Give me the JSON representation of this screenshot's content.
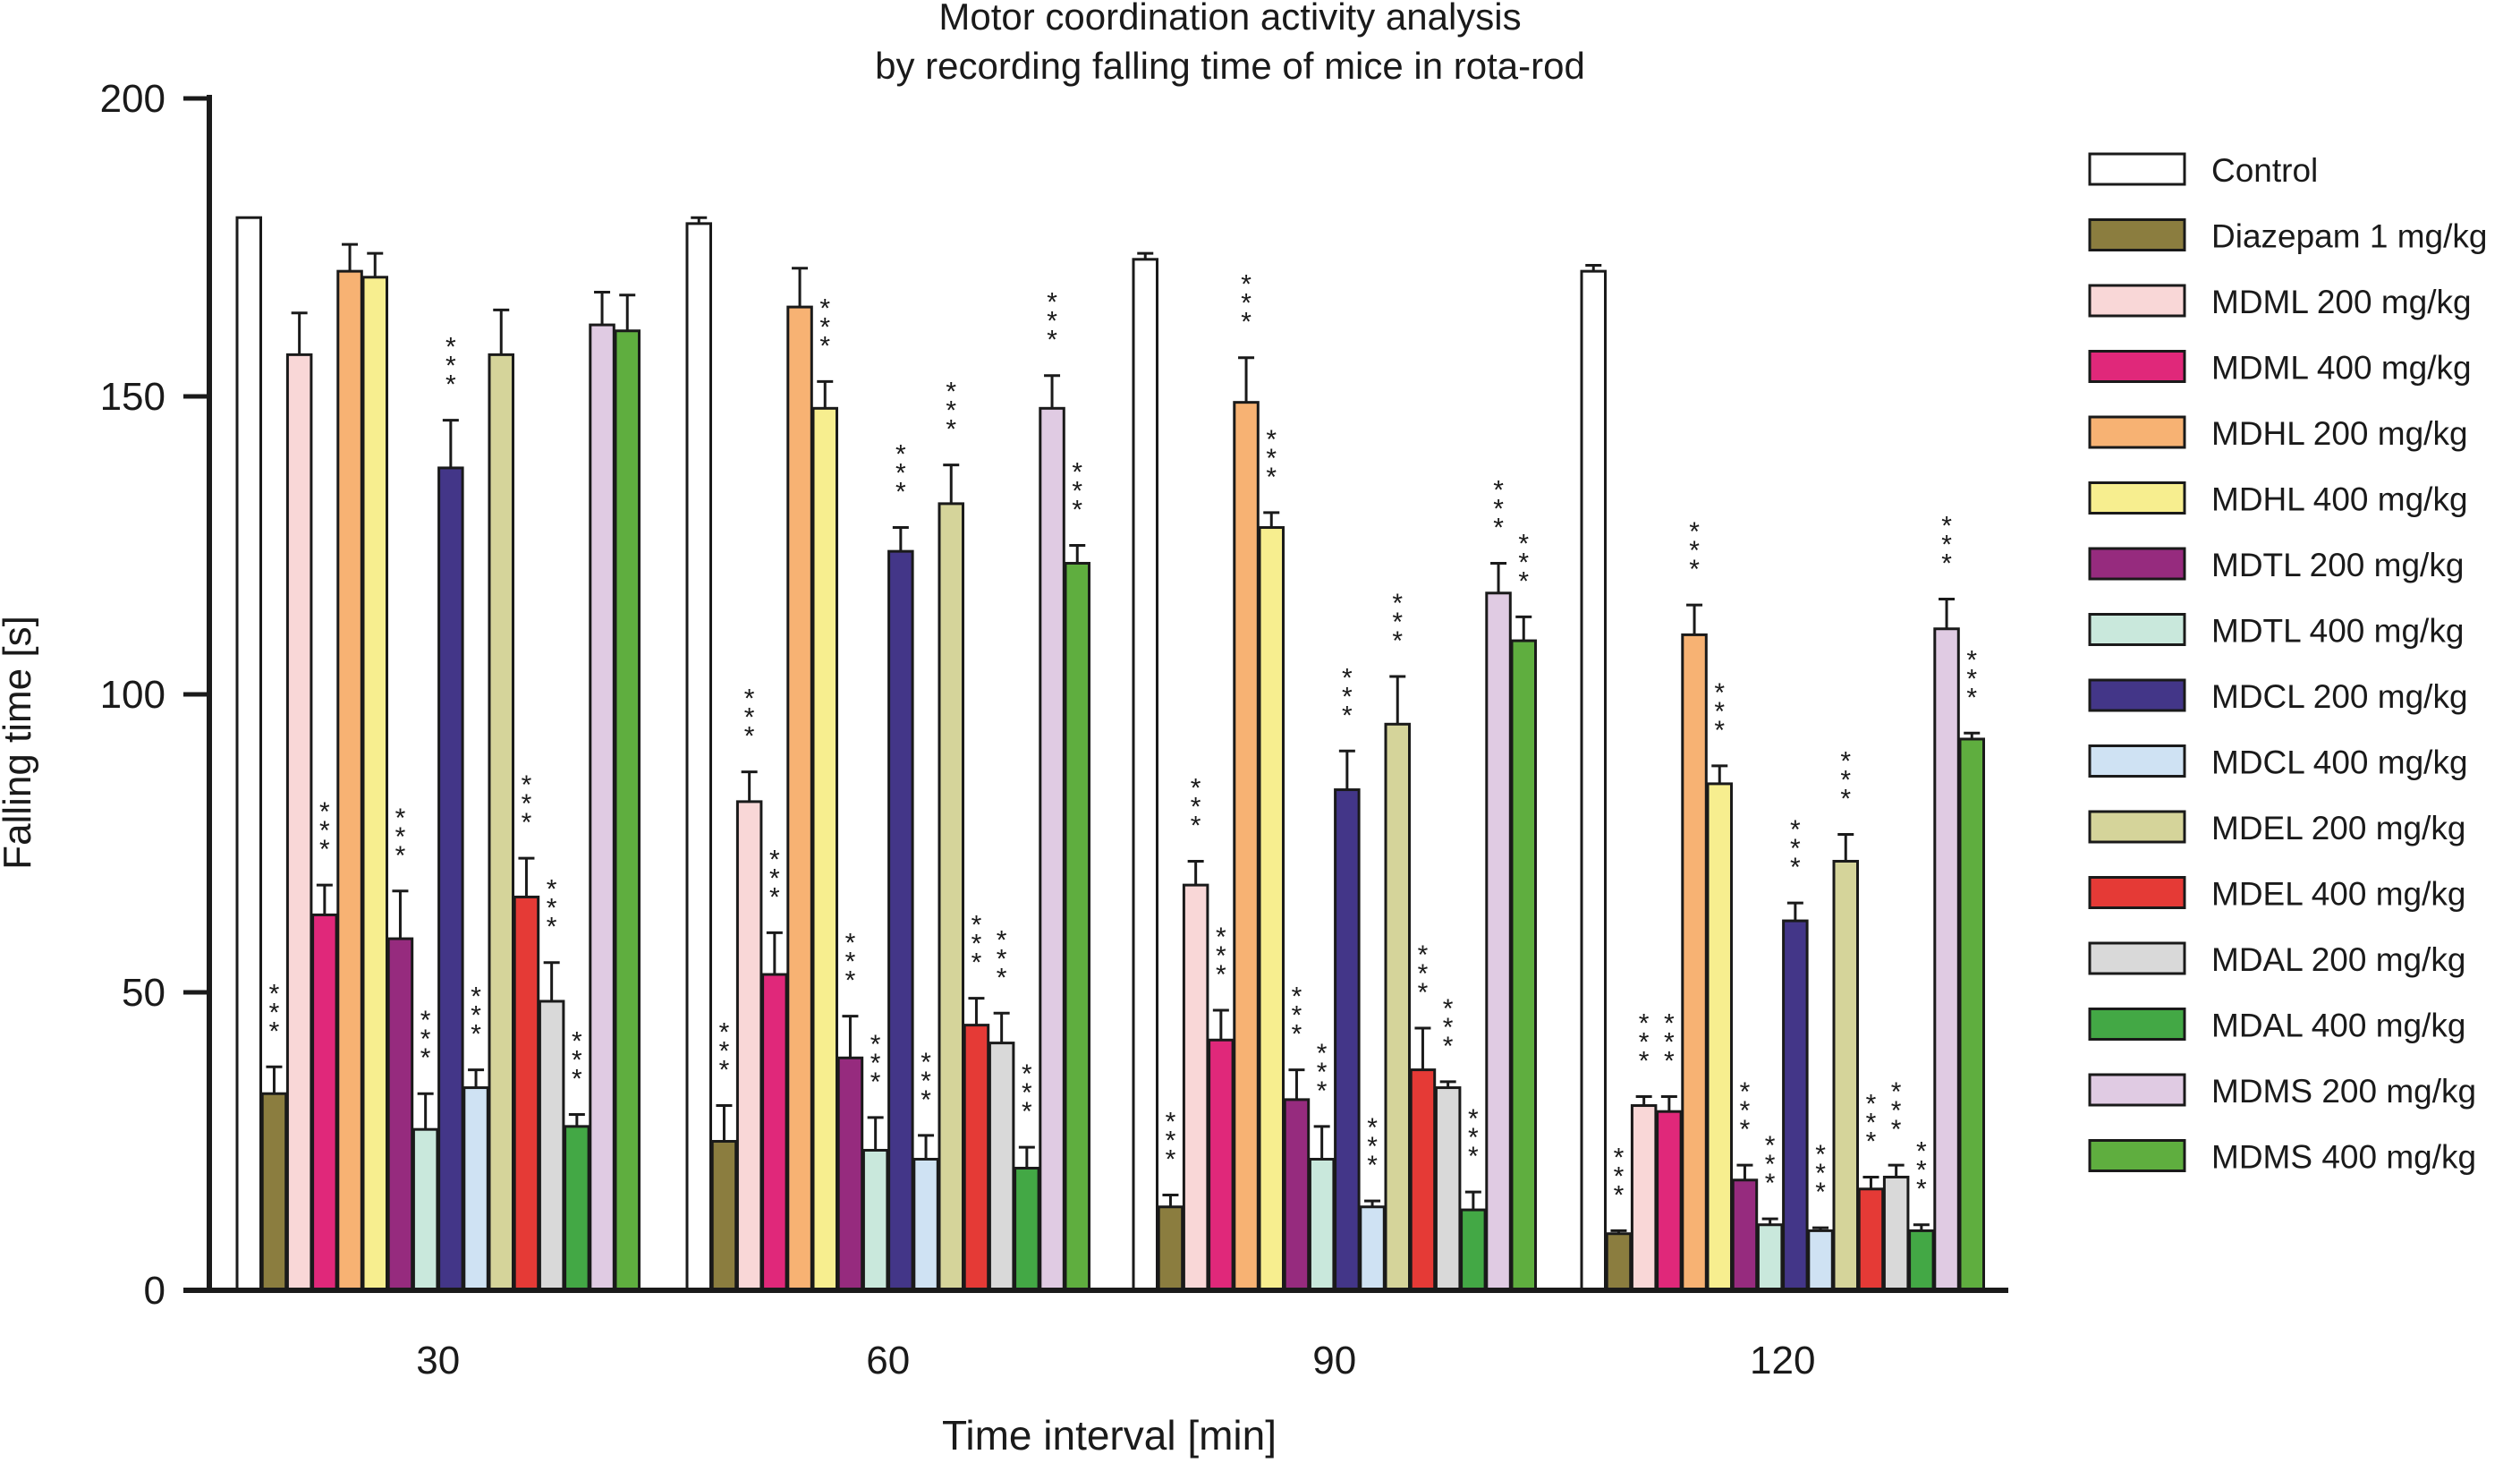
{
  "chart_data": {
    "type": "bar",
    "title": [
      "Motor coordination activity analysis",
      "by recording falling time of mice in rota-rod"
    ],
    "xlabel": "Time interval [min]",
    "ylabel": "Falling time [s]",
    "categories": [
      "30",
      "60",
      "90",
      "120"
    ],
    "ylim": [
      0,
      200
    ],
    "yticks": [
      0,
      50,
      100,
      150,
      200
    ],
    "grid": false,
    "legend_position": "right",
    "significance_marker": "*",
    "series": [
      {
        "name": "Control",
        "color": "#ffffff",
        "values": [
          180,
          179,
          173,
          171
        ],
        "errors": [
          0,
          1,
          1,
          1
        ],
        "stars": [
          0,
          0,
          0,
          0
        ]
      },
      {
        "name": "Diazepam 1 mg/kg",
        "color": "#8b7d3f",
        "values": [
          33,
          25,
          14,
          9.5
        ],
        "errors": [
          4.5,
          6,
          2,
          0.5
        ],
        "stars": [
          3,
          3,
          3,
          3
        ]
      },
      {
        "name": "MDML 200 mg/kg",
        "color": "#f9d7d7",
        "values": [
          157,
          82,
          68,
          31
        ],
        "errors": [
          7,
          5,
          4,
          1.5
        ],
        "stars": [
          0,
          3,
          3,
          3
        ]
      },
      {
        "name": "MDML 400 mg/kg",
        "color": "#e0287a",
        "values": [
          63,
          53,
          42,
          30
        ],
        "errors": [
          5,
          7,
          5,
          2.5
        ],
        "stars": [
          3,
          3,
          3,
          3
        ]
      },
      {
        "name": "MDHL 200 mg/kg",
        "color": "#f7b273",
        "values": [
          171,
          165,
          149,
          110
        ],
        "errors": [
          4.5,
          6.5,
          7.5,
          5
        ],
        "stars": [
          0,
          0,
          3,
          3
        ]
      },
      {
        "name": "MDHL 400 mg/kg",
        "color": "#f7ee8f",
        "values": [
          170,
          148,
          128,
          85
        ],
        "errors": [
          4,
          4.5,
          2.5,
          3
        ],
        "stars": [
          0,
          3,
          3,
          3
        ]
      },
      {
        "name": "MDTL 200 mg/kg",
        "color": "#962b7e",
        "values": [
          59,
          39,
          32,
          18.5
        ],
        "errors": [
          8,
          7,
          5,
          2.5
        ],
        "stars": [
          3,
          3,
          3,
          3
        ]
      },
      {
        "name": "MDTL 400 mg/kg",
        "color": "#c9e8dc",
        "values": [
          27,
          23.5,
          22,
          11
        ],
        "errors": [
          6,
          5.5,
          5.5,
          1
        ],
        "stars": [
          3,
          3,
          3,
          3
        ]
      },
      {
        "name": "MDCL 200 mg/kg",
        "color": "#433688",
        "values": [
          138,
          124,
          84,
          62
        ],
        "errors": [
          8,
          4,
          6.5,
          3
        ],
        "stars": [
          3,
          3,
          3,
          3
        ]
      },
      {
        "name": "MDCL 400 mg/kg",
        "color": "#cfe2f3",
        "values": [
          34,
          22,
          14,
          10
        ],
        "errors": [
          3,
          4,
          1,
          0.5
        ],
        "stars": [
          3,
          3,
          3,
          3
        ]
      },
      {
        "name": "MDEL 200 mg/kg",
        "color": "#d5d49a",
        "values": [
          157,
          132,
          95,
          72
        ],
        "errors": [
          7.5,
          6.5,
          8,
          4.5
        ],
        "stars": [
          0,
          3,
          3,
          3
        ]
      },
      {
        "name": "MDEL 400 mg/kg",
        "color": "#e53a36",
        "values": [
          66,
          44.5,
          37,
          17
        ],
        "errors": [
          6.5,
          4.5,
          7,
          2
        ],
        "stars": [
          3,
          3,
          3,
          3
        ]
      },
      {
        "name": "MDAL 200 mg/kg",
        "color": "#d9d9d9",
        "values": [
          48.5,
          41.5,
          34,
          19
        ],
        "errors": [
          6.5,
          5,
          1,
          2
        ],
        "stars": [
          3,
          3,
          3,
          3
        ]
      },
      {
        "name": "MDAL 400 mg/kg",
        "color": "#43a845",
        "values": [
          27.5,
          20.5,
          13.5,
          10
        ],
        "errors": [
          2,
          3.5,
          3,
          1
        ],
        "stars": [
          3,
          3,
          3,
          3
        ]
      },
      {
        "name": "MDMS 200 mg/kg",
        "color": "#e0cbe3",
        "values": [
          162,
          148,
          117,
          111
        ],
        "errors": [
          5.5,
          5.5,
          5,
          5
        ],
        "stars": [
          0,
          3,
          3,
          3
        ]
      },
      {
        "name": "MDMS 400 mg/kg",
        "color": "#5fae3f",
        "values": [
          161,
          122,
          109,
          92.5
        ],
        "errors": [
          6,
          3,
          4,
          1
        ],
        "stars": [
          0,
          3,
          3,
          3
        ]
      }
    ]
  }
}
